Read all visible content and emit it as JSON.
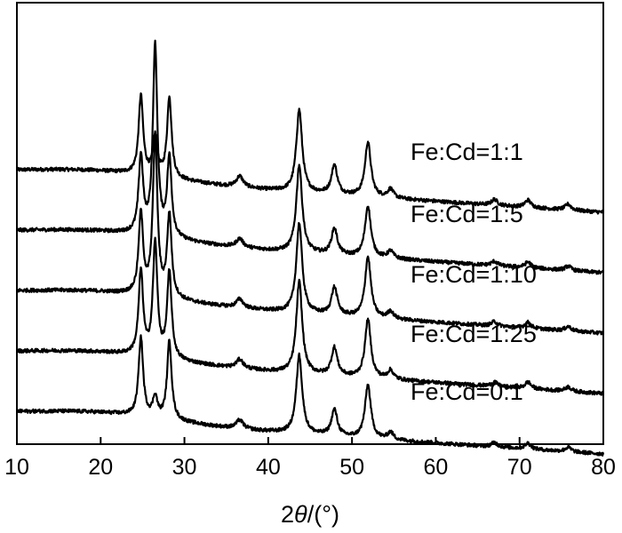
{
  "chart_data": {
    "type": "line",
    "xlabel_parts": [
      "2",
      "θ",
      "/(°)"
    ],
    "xlim": [
      10,
      80
    ],
    "x_ticks": [
      10,
      20,
      30,
      40,
      50,
      60,
      70,
      80
    ],
    "y_ticks_shown": false,
    "grid": false,
    "legend": "inline labels at right, above each trace",
    "series_color": "#000000",
    "series": [
      {
        "name": "Fe:Cd=1:1",
        "baseline": 4,
        "slope": 0.75,
        "peaks": [
          [
            24.8,
            10.8
          ],
          [
            26.5,
            5.2
          ],
          [
            28.2,
            11.1
          ],
          [
            36.6,
            1.5
          ],
          [
            43.7,
            11.3
          ],
          [
            47.9,
            4.0
          ],
          [
            51.9,
            7.5
          ],
          [
            54.6,
            1.2
          ],
          [
            67.0,
            0.8
          ],
          [
            71.0,
            1.0
          ],
          [
            75.8,
            0.8
          ]
        ]
      },
      {
        "name": "Fe:Cd=1:5",
        "baseline": 3,
        "slope": 0.75,
        "peaks": [
          [
            24.8,
            10.5
          ],
          [
            26.5,
            26.0
          ],
          [
            28.2,
            10.8
          ],
          [
            36.6,
            1.2
          ],
          [
            43.7,
            12.0
          ],
          [
            47.9,
            3.6
          ],
          [
            51.9,
            7.0
          ],
          [
            54.6,
            1.0
          ],
          [
            67.0,
            0.6
          ],
          [
            71.0,
            0.8
          ],
          [
            75.8,
            0.6
          ]
        ]
      },
      {
        "name": "Fe:Cd=1:10",
        "baseline": 2,
        "slope": 0.75,
        "peaks": [
          [
            24.8,
            11.0
          ],
          [
            26.5,
            22.0
          ],
          [
            28.2,
            11.3
          ],
          [
            36.6,
            1.2
          ],
          [
            43.7,
            12.3
          ],
          [
            47.9,
            3.8
          ],
          [
            51.9,
            8.3
          ],
          [
            54.6,
            1.0
          ],
          [
            67.0,
            0.6
          ],
          [
            71.0,
            0.8
          ],
          [
            75.8,
            0.6
          ]
        ]
      },
      {
        "name": "Fe:Cd=1:25",
        "baseline": 1,
        "slope": 0.75,
        "peaks": [
          [
            24.8,
            11.5
          ],
          [
            26.5,
            15.5
          ],
          [
            28.2,
            11.8
          ],
          [
            36.6,
            1.2
          ],
          [
            43.7,
            12.6
          ],
          [
            47.9,
            3.8
          ],
          [
            51.9,
            8.0
          ],
          [
            54.6,
            1.2
          ],
          [
            67.0,
            0.6
          ],
          [
            71.0,
            0.9
          ],
          [
            75.8,
            0.6
          ]
        ]
      },
      {
        "name": "Fe:Cd=0:1",
        "baseline": 0,
        "slope": 0.75,
        "peaks": [
          [
            24.8,
            10.8
          ],
          [
            26.5,
            2.8
          ],
          [
            28.2,
            10.8
          ],
          [
            36.6,
            1.2
          ],
          [
            43.7,
            10.8
          ],
          [
            47.9,
            3.6
          ],
          [
            51.9,
            7.3
          ],
          [
            54.6,
            1.0
          ],
          [
            67.0,
            0.6
          ],
          [
            71.0,
            0.8
          ],
          [
            75.8,
            0.6
          ]
        ]
      }
    ]
  }
}
